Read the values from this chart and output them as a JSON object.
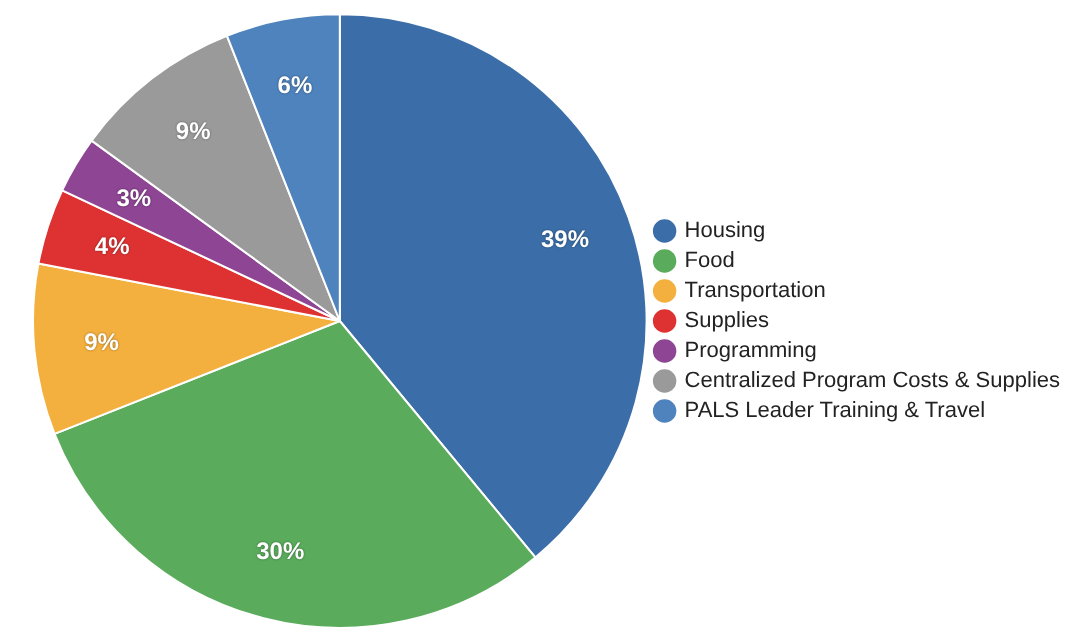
{
  "chart_data": {
    "type": "pie",
    "categories": [
      "Housing",
      "Food",
      "Transportation",
      "Supplies",
      "Programming",
      "Centralized Program Costs & Supplies",
      "PALS Leader Training & Travel"
    ],
    "values": [
      39,
      30,
      9,
      4,
      3,
      9,
      6
    ],
    "colors": [
      "#3b6ea8",
      "#5aab5c",
      "#f4b03e",
      "#de3232",
      "#8d4594",
      "#9a9a9a",
      "#4f83bd"
    ],
    "value_labels": [
      "39%",
      "30%",
      "9%",
      "4%",
      "3%",
      "9%",
      "6%"
    ],
    "legend": "right"
  }
}
